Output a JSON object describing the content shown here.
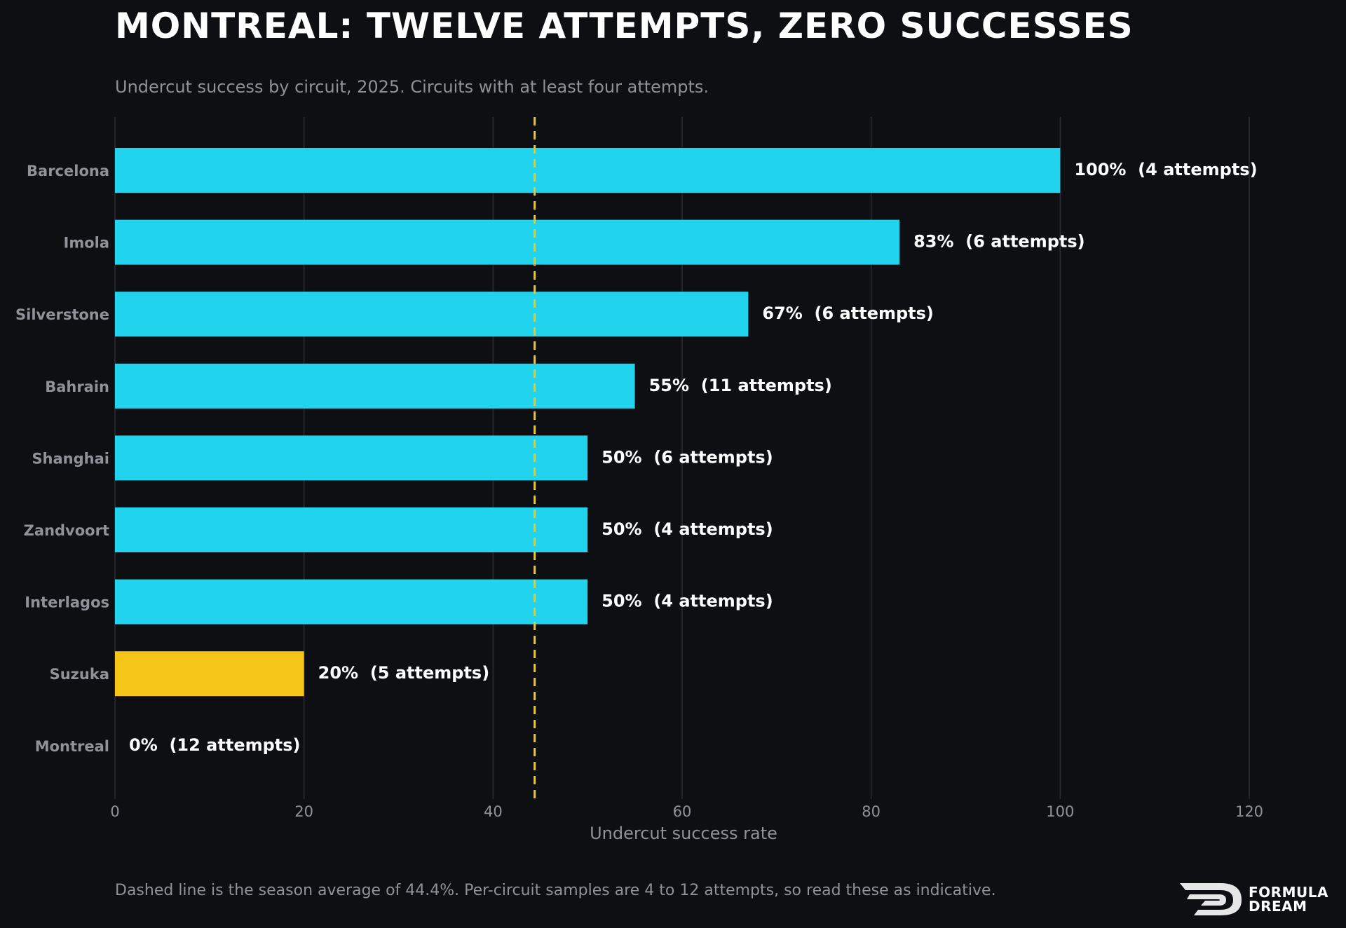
{
  "title": "MONTREAL: TWELVE ATTEMPTS, ZERO SUCCESSES",
  "subtitle": "Undercut success by circuit, 2025. Circuits with at least four attempts.",
  "footnote": "Dashed line is the season average of 44.4%. Per-circuit samples are 4 to 12 attempts, so read these as indicative.",
  "logo": {
    "line1": "FORMULA",
    "line2": "DREAM"
  },
  "colors": {
    "background": "#0d0f13",
    "bar": "#22d3ee",
    "highlight": "#f5c518",
    "reference_line": "#f5c518",
    "grid": "#2a2d33",
    "tick_text": "#8e9299",
    "label_text": "#ffffff"
  },
  "chart_data": {
    "type": "bar",
    "orientation": "horizontal",
    "xlabel": "Undercut success rate",
    "ylabel": "",
    "xlim": [
      0,
      120
    ],
    "xticks": [
      0,
      20,
      40,
      60,
      80,
      100,
      120
    ],
    "grid": "vertical",
    "categories": [
      "Barcelona",
      "Imola",
      "Silverstone",
      "Bahrain",
      "Shanghai",
      "Zandvoort",
      "Interlagos",
      "Suzuka",
      "Montreal"
    ],
    "values": [
      100,
      83,
      67,
      55,
      50,
      50,
      50,
      20,
      0
    ],
    "attempts": [
      4,
      6,
      6,
      11,
      6,
      4,
      4,
      5,
      12
    ],
    "data_labels": [
      "100%  (4 attempts)",
      "83%  (6 attempts)",
      "67%  (6 attempts)",
      "55%  (11 attempts)",
      "50%  (6 attempts)",
      "50%  (4 attempts)",
      "50%  (4 attempts)",
      "20%  (5 attempts)",
      "0%  (12 attempts)"
    ],
    "highlighted": [
      "Suzuka"
    ],
    "reference_line": {
      "value": 44.4,
      "style": "dashed"
    }
  }
}
